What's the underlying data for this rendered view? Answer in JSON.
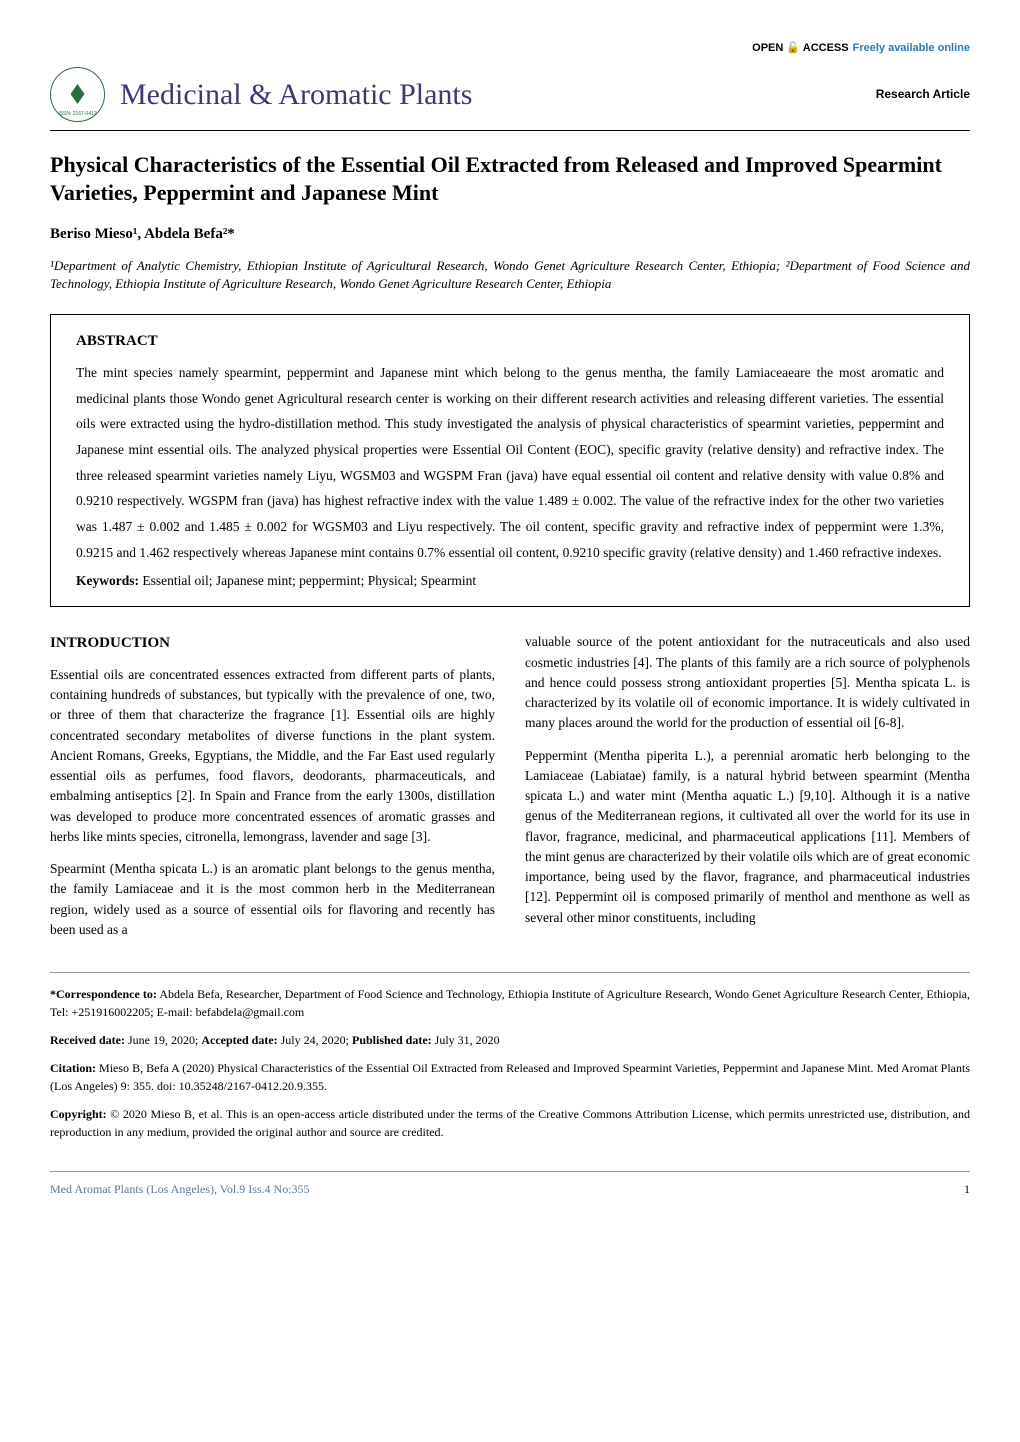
{
  "header": {
    "open_access_prefix": "OPEN",
    "open_access_suffix": "ACCESS",
    "freely_text": "Freely available online",
    "journal_title": "Medicinal & Aromatic Plants",
    "article_type": "Research Article",
    "issn": "ISSN: 2167-0412"
  },
  "article": {
    "title": "Physical Characteristics of the Essential Oil Extracted from Released and Improved Spearmint Varieties, Peppermint and Japanese Mint",
    "authors": "Beriso Mieso¹, Abdela Befa²*",
    "affiliations": "¹Department of Analytic Chemistry, Ethiopian Institute of Agricultural Research, Wondo Genet Agriculture Research Center, Ethiopia; ²Department of Food Science and Technology, Ethiopia Institute of Agriculture Research, Wondo Genet Agriculture Research Center, Ethiopia"
  },
  "abstract": {
    "heading": "ABSTRACT",
    "text": "The mint species namely spearmint, peppermint and Japanese mint which belong to the genus mentha, the family Lamiaceaeare the most aromatic and medicinal plants those Wondo genet Agricultural research center is working on their different research activities and releasing different varieties. The essential oils were extracted using the hydro-distillation method. This study investigated the analysis of physical characteristics of spearmint varieties, peppermint and Japanese mint essential oils. The analyzed physical properties were Essential Oil Content (EOC), specific gravity (relative density) and refractive index. The three released spearmint varieties namely Liyu, WGSM03 and WGSPM Fran (java) have equal essential oil content and relative density with value 0.8% and 0.9210 respectively. WGSPM fran (java) has highest refractive index with the value 1.489 ± 0.002. The value of the refractive index for the other two varieties was 1.487 ± 0.002 and 1.485 ± 0.002 for WGSM03 and Liyu respectively. The oil content, specific gravity and refractive index of peppermint were 1.3%, 0.9215 and 1.462 respectively whereas Japanese mint contains 0.7% essential oil content, 0.9210 specific gravity (relative density) and 1.460 refractive indexes.",
    "keywords_label": "Keywords:",
    "keywords": " Essential oil; Japanese mint; peppermint; Physical; Spearmint"
  },
  "intro": {
    "heading": "INTRODUCTION",
    "p1": "Essential oils are concentrated essences extracted from different parts of plants, containing hundreds of substances, but typically with the prevalence of one, two, or three of them that characterize the fragrance [1]. Essential oils are highly concentrated secondary metabolites of diverse functions in the plant system. Ancient Romans, Greeks, Egyptians, the Middle, and the Far East used regularly essential oils as perfumes, food flavors, deodorants, pharmaceuticals, and embalming antiseptics [2]. In Spain and France from the early 1300s, distillation was developed to produce more concentrated essences of aromatic grasses and herbs like mints species, citronella, lemongrass, lavender and sage [3].",
    "p2": "Spearmint (Mentha spicata L.) is an aromatic plant belongs to the genus mentha, the family Lamiaceae and it is the most common herb in the Mediterranean region, widely used as a source of essential oils for flavoring and recently has been used as a",
    "p3": "valuable source of the potent antioxidant for the nutraceuticals and also used cosmetic industries [4]. The plants of this family are a rich source of polyphenols and hence could possess strong antioxidant properties [5]. Mentha spicata L. is characterized by its volatile oil of economic importance. It is widely cultivated in many places around the world for the production of essential oil [6-8].",
    "p4": "Peppermint (Mentha piperita L.), a perennial aromatic herb belonging to the Lamiaceae (Labiatae) family, is a natural hybrid between spearmint (Mentha spicata L.) and water mint (Mentha aquatic L.) [9,10]. Although it is a native genus of the Mediterranean regions, it cultivated all over the world for its use in flavor, fragrance, medicinal, and pharmaceutical applications [11]. Members of the mint genus are characterized by their volatile oils which are of great economic importance, being used by the flavor, fragrance, and pharmaceutical industries [12]. Peppermint oil is composed primarily of menthol and menthone as well as several other minor constituents, including"
  },
  "footer": {
    "correspondence_label": "*Correspondence to:",
    "correspondence": " Abdela Befa, Researcher, Department of Food Science and Technology, Ethiopia Institute of Agriculture Research, Wondo Genet Agriculture Research Center, Ethiopia, Tel: +251916002205; E-mail: befabdela@gmail.com",
    "received_label": "Received date:",
    "received": " June 19, 2020; ",
    "accepted_label": "Accepted date:",
    "accepted": " July 24, 2020; ",
    "published_label": "Published date:",
    "published": " July 31, 2020",
    "citation_label": "Citation:",
    "citation": " Mieso B, Befa A (2020) Physical Characteristics of the Essential Oil Extracted from Released and Improved Spearmint Varieties, Peppermint and Japanese Mint. Med Aromat Plants (Los Angeles) 9: 355. doi: 10.35248/2167-0412.20.9.355.",
    "copyright_label": "Copyright:",
    "copyright": " © 2020 Mieso B, et al. This is an open-access article distributed under the terms of the Creative Commons Attribution License, which permits unrestricted use, distribution, and reproduction in any medium, provided the original author and source are credited."
  },
  "page_footer": {
    "left": "Med Aromat Plants (Los Angeles), Vol.9 Iss.4 No:355",
    "page": "1"
  }
}
